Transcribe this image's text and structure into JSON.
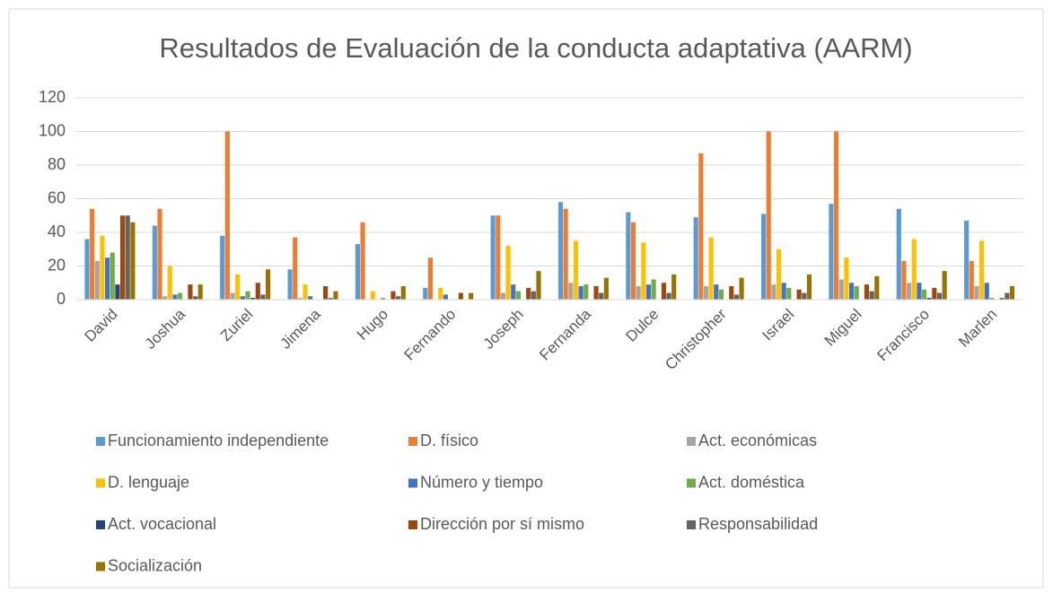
{
  "chart_data": {
    "type": "bar",
    "title": "Resultados de Evaluación de la conducta adaptativa (AARM)",
    "categories": [
      "David",
      "Joshua",
      "Zuriel",
      "Jimena",
      "Hugo",
      "Fernando",
      "Joseph",
      "Fernanda",
      "Dulce",
      "Christopher",
      "Israel",
      "Miguel",
      "Francisco",
      "Marlen"
    ],
    "series": [
      {
        "name": "Funcionamiento independiente",
        "color": "#5b9bd5",
        "values": [
          36,
          44,
          38,
          18,
          33,
          7,
          50,
          58,
          52,
          49,
          51,
          57,
          54,
          47
        ]
      },
      {
        "name": "D. físico",
        "color": "#ed7d31",
        "values": [
          54,
          54,
          100,
          37,
          46,
          25,
          50,
          54,
          46,
          87,
          100,
          100,
          23,
          23
        ]
      },
      {
        "name": "Act. económicas",
        "color": "#a5a5a5",
        "values": [
          23,
          2,
          4,
          1,
          0,
          0,
          4,
          10,
          8,
          8,
          9,
          12,
          10,
          8
        ]
      },
      {
        "name": "D. lenguaje",
        "color": "#ffc000",
        "values": [
          38,
          20,
          15,
          9,
          5,
          7,
          32,
          35,
          34,
          37,
          30,
          25,
          36,
          35
        ]
      },
      {
        "name": "Número y tiempo",
        "color": "#4472c4",
        "values": [
          25,
          3,
          2,
          2,
          0,
          3,
          9,
          8,
          9,
          9,
          10,
          10,
          10,
          10
        ]
      },
      {
        "name": "Act. doméstica",
        "color": "#70ad47",
        "values": [
          28,
          4,
          5,
          0,
          1,
          0,
          5,
          9,
          12,
          6,
          7,
          8,
          6,
          1
        ]
      },
      {
        "name": "Act. vocacional",
        "color": "#264478",
        "values": [
          9,
          0,
          1,
          0,
          0,
          0,
          0,
          0,
          0,
          0,
          0,
          0,
          1,
          0
        ]
      },
      {
        "name": "Dirección por sí mismo",
        "color": "#9e480e",
        "values": [
          50,
          9,
          10,
          8,
          5,
          4,
          7,
          8,
          10,
          8,
          6,
          9,
          7,
          1
        ]
      },
      {
        "name": "Responsabilidad",
        "color": "#636363",
        "values": [
          50,
          2,
          3,
          1,
          2,
          0,
          5,
          4,
          4,
          3,
          4,
          5,
          4,
          4
        ]
      },
      {
        "name": "Socialización",
        "color": "#997300",
        "values": [
          46,
          9,
          18,
          5,
          8,
          4,
          17,
          13,
          15,
          13,
          15,
          14,
          17,
          8
        ]
      }
    ],
    "ylim": [
      0,
      120
    ],
    "yticks": [
      0,
      20,
      40,
      60,
      80,
      100,
      120
    ],
    "grid": true
  }
}
